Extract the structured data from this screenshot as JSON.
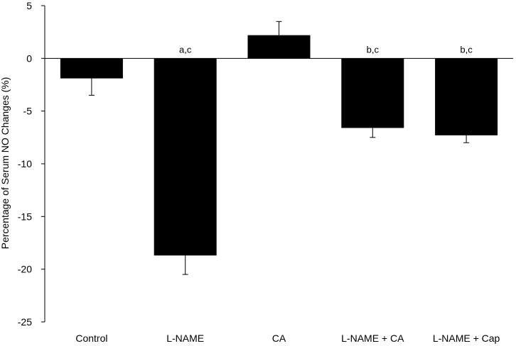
{
  "chart_data": {
    "type": "bar",
    "title": "",
    "xlabel": "",
    "ylabel": "Percentage of Serum NO Changes (%)",
    "ylim": [
      -25,
      5
    ],
    "yticks": [
      5,
      0,
      -5,
      -10,
      -15,
      -20,
      -25
    ],
    "grid": false,
    "categories": [
      "Control",
      "L-NAME",
      "CA",
      "L-NAME + CA",
      "L-NAME + Cap"
    ],
    "values": [
      -1.9,
      -18.7,
      2.2,
      -6.6,
      -7.3
    ],
    "errors": [
      1.6,
      1.8,
      1.3,
      0.9,
      0.7
    ],
    "annotations": [
      "",
      "a,c",
      "",
      "b,c",
      "b,c"
    ],
    "bar_color": "#000000"
  }
}
